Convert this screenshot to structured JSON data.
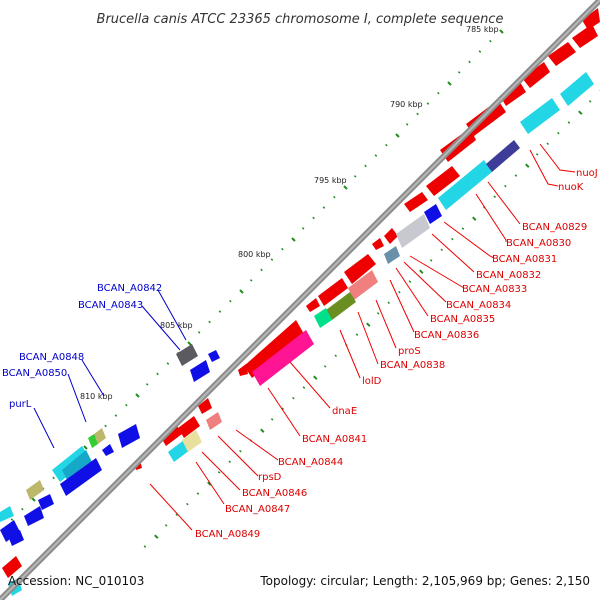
{
  "title": "Brucella canis ATCC 23365 chromosome I, complete sequence",
  "accession": "Accession: NC_010103",
  "summary": "Topology: circular; Length: 2,105,969 bp; Genes: 2,150",
  "colors": {
    "backbone": "#8c8c8c",
    "tick": "#228b22",
    "label_red": "#dd0000",
    "label_blue": "#0000cc"
  },
  "kbp_labels": [
    {
      "text": "785 kbp"
    },
    {
      "text": "790 kbp"
    },
    {
      "text": "795 kbp"
    },
    {
      "text": "800 kbp"
    },
    {
      "text": "805 kbp"
    },
    {
      "text": "810 kbp"
    }
  ],
  "gene_labels_red": [
    {
      "text": "nuoJ"
    },
    {
      "text": "nuoK"
    },
    {
      "text": "BCAN_A0829"
    },
    {
      "text": "BCAN_A0830"
    },
    {
      "text": "BCAN_A0831"
    },
    {
      "text": "BCAN_A0832"
    },
    {
      "text": "BCAN_A0833"
    },
    {
      "text": "BCAN_A0834"
    },
    {
      "text": "BCAN_A0835"
    },
    {
      "text": "BCAN_A0836"
    },
    {
      "text": "proS"
    },
    {
      "text": "BCAN_A0838"
    },
    {
      "text": "lolD"
    },
    {
      "text": "dnaE"
    },
    {
      "text": "BCAN_A0841"
    },
    {
      "text": "BCAN_A0844"
    },
    {
      "text": "rpsD"
    },
    {
      "text": "BCAN_A0846"
    },
    {
      "text": "BCAN_A0847"
    },
    {
      "text": "BCAN_A0849"
    }
  ],
  "gene_labels_blue": [
    {
      "text": "BCAN_A0842"
    },
    {
      "text": "BCAN_A0843"
    },
    {
      "text": "BCAN_A0848"
    },
    {
      "text": "BCAN_A0850"
    },
    {
      "text": "purL"
    }
  ]
}
